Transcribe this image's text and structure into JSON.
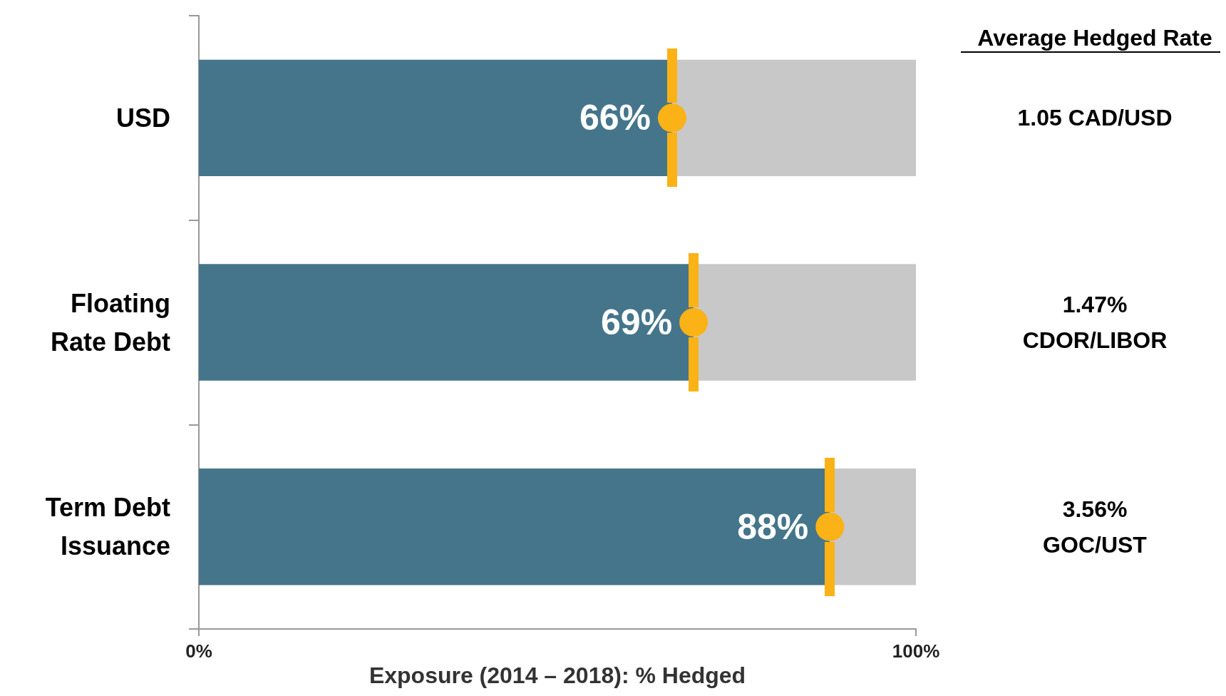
{
  "chart_data": {
    "type": "bar",
    "orientation": "horizontal",
    "stacked": true,
    "categories": [
      "USD",
      "Floating\nRate Debt",
      "Term Debt\nIssuance"
    ],
    "series": [
      {
        "color": "#44758b",
        "values": [
          66,
          69,
          88
        ],
        "value_labels": [
          "66%",
          "69%",
          "88%"
        ]
      },
      {
        "color": "#c8c8c8",
        "values": [
          34,
          31,
          12
        ]
      },
      {
        "type": "scatter",
        "color": "#fbb216",
        "values": [
          66,
          69,
          88
        ],
        "marker": "circle"
      }
    ],
    "xlim": [
      0,
      100
    ],
    "xticks": [
      {
        "value": 0,
        "label": "0%"
      },
      {
        "value": 100,
        "label": "100%"
      }
    ],
    "xlabel": "Exposure (2014 – 2018): % Hedged",
    "grid": false,
    "annotations": [
      "Average Hedged Rate",
      "1.05 CAD/USD",
      "1.47%\nCDOR/LIBOR",
      "3.56%\nGOC/UST"
    ]
  }
}
